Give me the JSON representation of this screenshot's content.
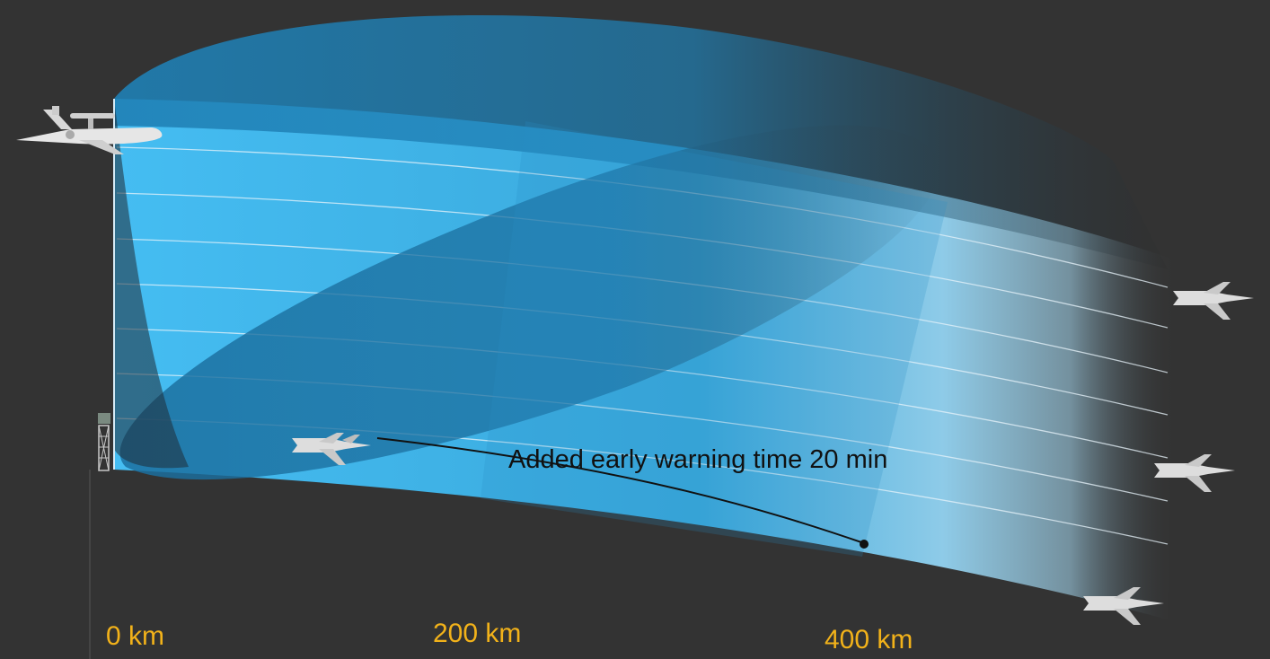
{
  "annotation": {
    "text": "Added early warning time 20 min"
  },
  "distance_labels": [
    "0 km",
    "200 km",
    "400 km"
  ],
  "icons": {
    "aew_aircraft": "aew-aircraft-icon",
    "ground_radar": "radar-tower-icon",
    "fighter_detected_by_ground": "fighter-jet-icon",
    "fighters_far": [
      "fighter-jet-icon",
      "fighter-jet-icon",
      "fighter-jet-icon"
    ]
  },
  "colors": {
    "background": "#333333",
    "coverage_light": "#45bdf2",
    "coverage_dark": "#1a6f9c",
    "label": "#f2b21a"
  }
}
